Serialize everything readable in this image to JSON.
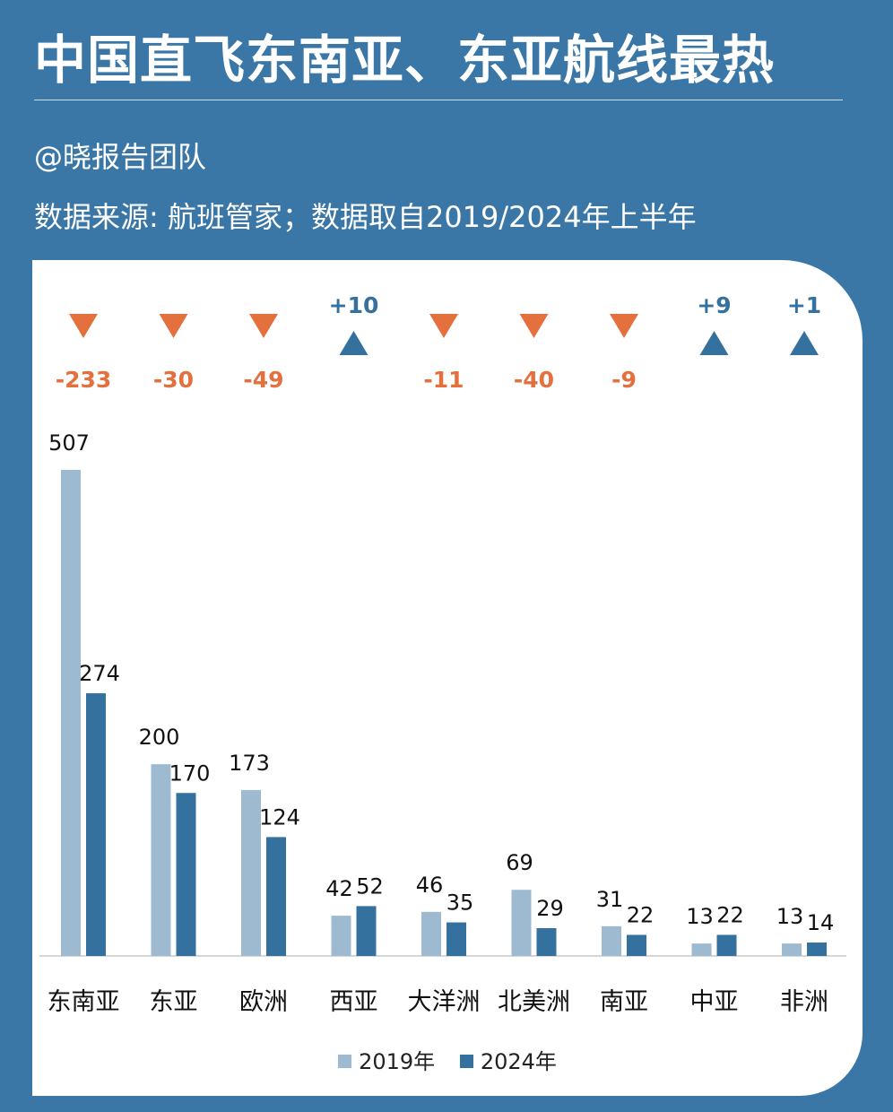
{
  "header": {
    "title": "中国直飞东南亚、东亚航线最热",
    "author": "@晓报告团队",
    "source": "数据来源: 航班管家；数据取自2019/2024年上半年"
  },
  "colors": {
    "background": "#3a77a6",
    "series_2019": "#9dbad0",
    "series_2024": "#34719e",
    "decrease": "#e4703d",
    "increase": "#34719e"
  },
  "chart_data": {
    "type": "bar",
    "categories": [
      "东南亚",
      "东亚",
      "欧洲",
      "西亚",
      "大洋洲",
      "北美洲",
      "南亚",
      "中亚",
      "非洲"
    ],
    "series": [
      {
        "name": "2019年",
        "values": [
          507,
          200,
          173,
          42,
          46,
          69,
          31,
          13,
          13
        ]
      },
      {
        "name": "2024年",
        "values": [
          274,
          170,
          124,
          52,
          35,
          29,
          22,
          22,
          14
        ]
      }
    ],
    "changes": [
      "-233",
      "-30",
      "-49",
      "+10",
      "-11",
      "-40",
      "-9",
      "+9",
      "+1"
    ],
    "ylim": [
      0,
      507
    ],
    "legend_position": "bottom-center",
    "grid": false
  }
}
